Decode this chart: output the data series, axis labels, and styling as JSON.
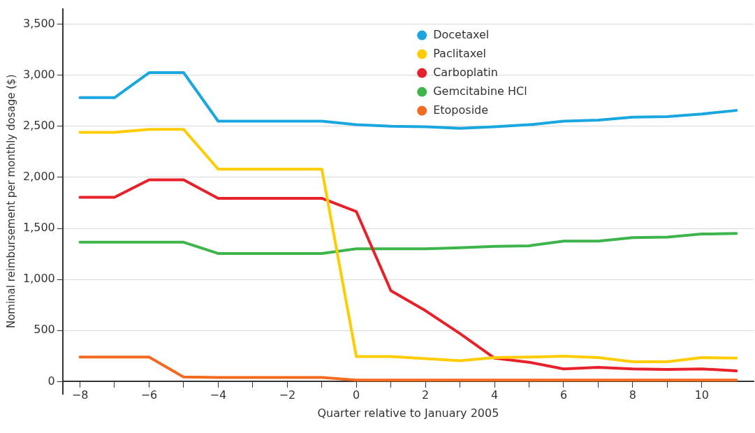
{
  "chart_data": {
    "type": "line",
    "xlabel": "Quarter relative to January 2005",
    "ylabel": "Nominal reimbursement per monthly dosage ($)",
    "x": [
      -8,
      -7,
      -6,
      -5,
      -4,
      -3,
      -2,
      -1,
      0,
      1,
      2,
      3,
      4,
      5,
      6,
      7,
      8,
      9,
      10,
      11
    ],
    "series": [
      {
        "name": "Docetaxel",
        "color": "#1aa7e0",
        "values": [
          2780,
          2780,
          3025,
          3025,
          2550,
          2550,
          2550,
          2550,
          2515,
          2500,
          2495,
          2480,
          2495,
          2515,
          2550,
          2560,
          2590,
          2595,
          2620,
          2655
        ]
      },
      {
        "name": "Paclitaxel",
        "color": "#ffcc00",
        "values": [
          2440,
          2440,
          2470,
          2470,
          2080,
          2080,
          2080,
          2080,
          245,
          245,
          225,
          205,
          235,
          240,
          250,
          235,
          195,
          195,
          235,
          230
        ]
      },
      {
        "name": "Carboplatin",
        "color": "#e8202a",
        "values": [
          1805,
          1805,
          1975,
          1975,
          1795,
          1795,
          1795,
          1795,
          1665,
          890,
          695,
          470,
          230,
          190,
          125,
          140,
          125,
          120,
          125,
          105
        ]
      },
      {
        "name": "Gemcitabine HCl",
        "color": "#3db54a",
        "values": [
          1365,
          1365,
          1365,
          1365,
          1255,
          1255,
          1255,
          1255,
          1300,
          1300,
          1300,
          1310,
          1325,
          1330,
          1375,
          1375,
          1410,
          1415,
          1445,
          1450
        ]
      },
      {
        "name": "Etoposide",
        "color": "#f26b21",
        "values": [
          240,
          240,
          240,
          45,
          40,
          40,
          40,
          40,
          15,
          15,
          15,
          15,
          15,
          15,
          15,
          15,
          15,
          15,
          15,
          15
        ]
      }
    ],
    "xlim": [
      -8.5,
      11.5
    ],
    "xticks": [
      {
        "value": -8,
        "label": "−8"
      },
      {
        "value": -7,
        "label": null
      },
      {
        "value": -6,
        "label": "−6"
      },
      {
        "value": -5,
        "label": null
      },
      {
        "value": -4,
        "label": "−4"
      },
      {
        "value": -3,
        "label": null
      },
      {
        "value": -2,
        "label": "−2"
      },
      {
        "value": -1,
        "label": null
      },
      0,
      {
        "value": 1,
        "label": null
      },
      2,
      {
        "value": 3,
        "label": null
      },
      4,
      {
        "value": 5,
        "label": null
      },
      6,
      {
        "value": 7,
        "label": null
      },
      8,
      {
        "value": 9,
        "label": null
      },
      10
    ],
    "ylim": [
      -120,
      3650
    ],
    "yticks": [
      0,
      500,
      {
        "value": 1000,
        "label": "1,000"
      },
      {
        "value": 1500,
        "label": "1,500"
      },
      {
        "value": 2000,
        "label": "2,000"
      },
      {
        "value": 2500,
        "label": "2,500"
      },
      {
        "value": 3000,
        "label": "3,000"
      },
      {
        "value": 3500,
        "label": "3,500"
      }
    ],
    "grid": "y",
    "legend": "top",
    "marker": "none",
    "line_style": "solid"
  }
}
